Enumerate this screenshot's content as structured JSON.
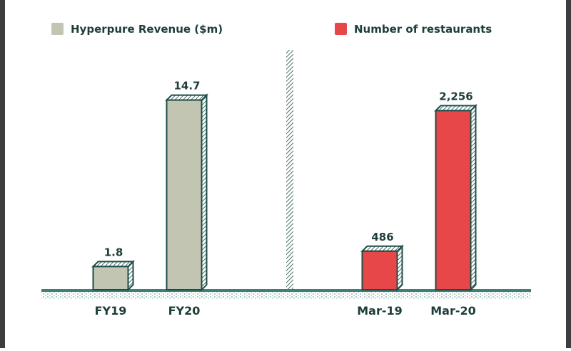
{
  "chart_data": [
    {
      "type": "bar",
      "categories": [
        "FY19",
        "FY20"
      ],
      "values": [
        1.8,
        14.7
      ],
      "value_labels": [
        "1.8",
        "14.7"
      ],
      "legend": "Hyperpure Revenue ($m)",
      "legend_placement": "top-left",
      "color": "#c3c5b3",
      "ylim": [
        0,
        16
      ],
      "grid": false
    },
    {
      "type": "bar",
      "categories": [
        "Mar-19",
        "Mar-20"
      ],
      "values": [
        486,
        2256
      ],
      "value_labels": [
        "486",
        "2,256"
      ],
      "legend": "Number of restaurants",
      "legend_placement": "top-right",
      "color": "#e8474a",
      "ylim": [
        0,
        2600
      ],
      "grid": false
    }
  ],
  "colors": {
    "outline": "#1d4d47",
    "text": "#1d3d3a",
    "ground": "#3f7f78"
  }
}
